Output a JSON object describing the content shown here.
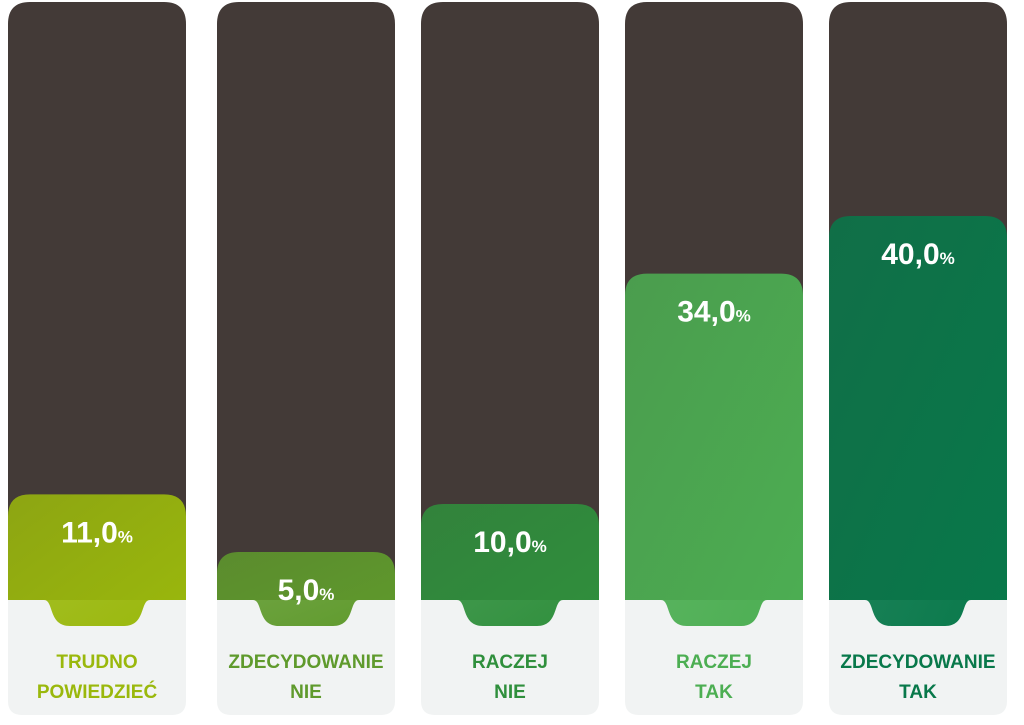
{
  "chart_data": {
    "type": "bar",
    "categories": [
      "TRUDNO\nPOWIEDZIEĆ",
      "ZDECYDOWANIE\nNIE",
      "RACZEJ\nNIE",
      "RACZEJ\nTAK",
      "ZDECYDOWANIE\nTAK"
    ],
    "values": [
      11.0,
      5.0,
      10.0,
      34.0,
      40.0
    ],
    "value_labels": [
      "11,0%",
      "5,0%",
      "10,0%",
      "34,0%",
      "40,0%"
    ],
    "colors": [
      "#9ab80c",
      "#5f9a2c",
      "#2f8f3c",
      "#4cae52",
      "#08784a"
    ]
  }
}
